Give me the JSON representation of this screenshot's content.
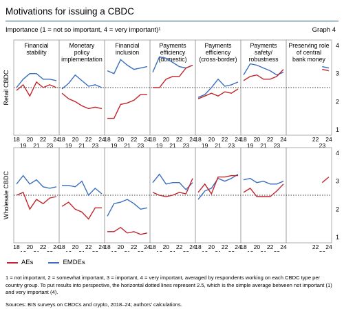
{
  "header": {
    "title": "Motivations for issuing a CBDC",
    "subtitle": "Importance (1 = not so important, 4 = very important)¹",
    "graph_no": "Graph 4"
  },
  "legend": [
    {
      "name": "AEs",
      "color": "#c0252b"
    },
    {
      "name": "EMDEs",
      "color": "#3a6ebd"
    }
  ],
  "footnote": "1 = not important, 2 = somewhat important, 3 = important, 4 = very important, averaged by respondents working on each CBDC type per country group. To put results into perspective, the horizontal dotted lines represent 2.5, which is the simple average between not important (1) and very important (4).",
  "sources": "Sources: BIS surveys on CBDCs and crypto, 2018–24; authors' calculations.",
  "chart_data": {
    "type": "line",
    "ylim": [
      0.8,
      4.2
    ],
    "yticks": [
      1,
      2,
      3,
      4
    ],
    "reference_line": 2.5,
    "x_ticks_top": [
      "18",
      "20",
      "22",
      "24"
    ],
    "x_ticks_bottom": [
      "19",
      "21",
      "23"
    ],
    "x_ticks_top_last": [
      "22",
      "24"
    ],
    "x_ticks_bottom_last": [
      "23"
    ],
    "panel_titles": [
      "Financial stability",
      "Monetary policy implementation",
      "Financial inclusion",
      "Payments efficiency (domestic)",
      "Payments efficiency (cross-border)",
      "Payments safety/ robustness",
      "Preserving role of central bank money"
    ],
    "rows": [
      {
        "label": "Retail CBDC",
        "panels": [
          {
            "AEs": [
              2.4,
              2.6,
              2.2,
              2.7,
              2.5,
              2.6,
              2.5
            ],
            "EMDEs": [
              2.5,
              2.8,
              3.0,
              3.0,
              2.8,
              2.8,
              2.75
            ]
          },
          {
            "AEs": [
              2.3,
              2.1,
              2.0,
              1.85,
              1.75,
              1.8,
              1.75
            ],
            "EMDEs": [
              2.45,
              2.65,
              2.95,
              2.75,
              2.55,
              2.6,
              2.5
            ]
          },
          {
            "AEs": [
              1.4,
              1.4,
              1.9,
              1.95,
              2.05,
              2.25,
              2.25
            ],
            "EMDEs": [
              3.1,
              3.0,
              3.5,
              3.3,
              3.15,
              3.2,
              3.25
            ]
          },
          {
            "AEs": [
              2.5,
              2.5,
              2.8,
              2.9,
              2.9,
              3.2,
              3.3
            ],
            "EMDEs": [
              3.05,
              3.6,
              3.55,
              3.4,
              3.25,
              3.2,
              3.3
            ]
          },
          {
            "AEs": [
              2.1,
              2.2,
              2.3,
              2.2,
              2.35,
              2.3,
              2.45
            ],
            "EMDEs": [
              2.15,
              2.25,
              2.5,
              2.8,
              2.55,
              2.6,
              2.7
            ]
          },
          {
            "AEs": [
              2.75,
              2.9,
              2.95,
              2.8,
              2.8,
              2.9,
              3.15
            ],
            "EMDEs": [
              2.95,
              3.35,
              3.3,
              3.2,
              3.1,
              2.95,
              3.05
            ]
          },
          {
            "AEs": [
              null,
              null,
              null,
              null,
              null,
              3.15,
              3.1
            ],
            "EMDEs": [
              null,
              null,
              null,
              null,
              null,
              3.25,
              3.2
            ]
          }
        ]
      },
      {
        "label": "Wholesale CBDC",
        "panels": [
          {
            "AEs": [
              2.5,
              2.6,
              2.0,
              2.35,
              2.2,
              2.4,
              2.45
            ],
            "EMDEs": [
              2.9,
              3.2,
              2.9,
              3.05,
              2.8,
              2.75,
              2.8
            ]
          },
          {
            "AEs": [
              2.1,
              2.25,
              2.0,
              1.9,
              1.65,
              2.05,
              2.05
            ],
            "EMDEs": [
              2.85,
              2.85,
              2.8,
              3.0,
              2.5,
              2.75,
              2.55
            ]
          },
          {
            "AEs": [
              1.2,
              1.2,
              1.35,
              1.15,
              1.2,
              1.1,
              1.15
            ],
            "EMDEs": [
              1.75,
              2.2,
              2.25,
              2.35,
              2.2,
              2.0,
              2.05
            ]
          },
          {
            "AEs": [
              2.6,
              2.5,
              2.45,
              2.5,
              2.6,
              2.55,
              3.1
            ],
            "EMDEs": [
              2.95,
              3.25,
              2.9,
              2.95,
              2.95,
              2.7,
              2.95
            ]
          },
          {
            "AEs": [
              2.6,
              2.9,
              2.55,
              3.15,
              3.15,
              3.2,
              3.2
            ],
            "EMDEs": [
              2.35,
              2.65,
              2.75,
              3.1,
              3.0,
              3.1,
              3.25
            ]
          },
          {
            "AEs": [
              2.6,
              2.75,
              2.45,
              2.45,
              2.45,
              2.65,
              2.9
            ],
            "EMDEs": [
              3.05,
              3.1,
              2.95,
              3.0,
              2.9,
              2.9,
              3.0
            ]
          },
          {
            "AEs": [
              null,
              null,
              null,
              null,
              null,
              2.95,
              3.15
            ],
            "EMDEs": [
              null,
              null,
              null,
              null,
              null,
              null,
              null
            ]
          }
        ]
      }
    ]
  }
}
